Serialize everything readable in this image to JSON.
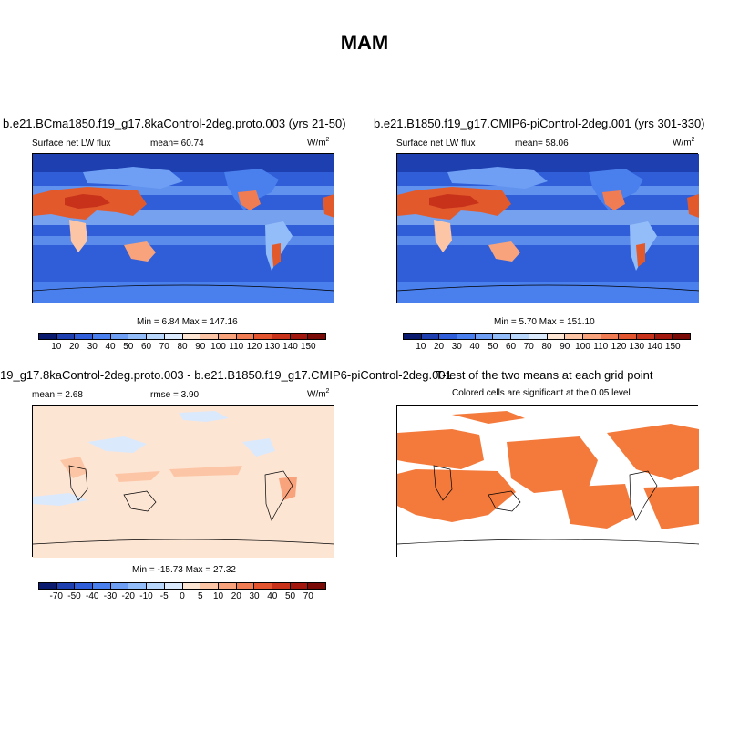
{
  "title": "MAM",
  "panels": [
    {
      "title": "b.e21.BCma1850.f19_g17.8kaControl-2deg.proto.003 (yrs 21-50)",
      "variable": "Surface net LW flux",
      "stat_label": "mean=",
      "stat_value": "60.74",
      "units": "W/m",
      "units_exp": "2",
      "min_label": "Min =",
      "min_value": "6.84",
      "max_label": "Max =",
      "max_value": "147.16"
    },
    {
      "title": "b.e21.B1850.f19_g17.CMIP6-piControl-2deg.001 (yrs 301-330)",
      "variable": "Surface net LW flux",
      "stat_label": "mean=",
      "stat_value": "58.06",
      "units": "W/m",
      "units_exp": "2",
      "min_label": "Min =",
      "min_value": "5.70",
      "max_label": "Max =",
      "max_value": "151.10"
    },
    {
      "title": "19_g17.8kaControl-2deg.proto.003 - b.e21.B1850.f19_g17.CMIP6-piControl-2deg.001",
      "mean_label": "mean =",
      "mean_value": "2.68",
      "rmse_label": "rmse =",
      "rmse_value": "3.90",
      "units": "W/m",
      "units_exp": "2",
      "min_label": "Min =",
      "min_value": "-15.73",
      "max_label": "Max =",
      "max_value": "27.32"
    },
    {
      "title": "T-test of the two means at each grid point",
      "subtitle": "Colored cells are significant at the 0.05 level"
    }
  ],
  "colorbar_abs": {
    "labels": [
      "10",
      "20",
      "30",
      "40",
      "50",
      "60",
      "70",
      "80",
      "90",
      "100",
      "110",
      "120",
      "130",
      "140",
      "150"
    ],
    "colors": [
      "#0a1a6e",
      "#1d3fb0",
      "#2f5ed8",
      "#4a7fee",
      "#6e9ff4",
      "#93bdf8",
      "#b9d6fb",
      "#dbe9fc",
      "#fde5d4",
      "#fcc6a6",
      "#f8a37c",
      "#f07c54",
      "#e2552e",
      "#c8321a",
      "#a2170e",
      "#7a0a05"
    ],
    "highlight_abs": "#e25a2c"
  },
  "colorbar_diff": {
    "labels": [
      "-70",
      "-50",
      "-40",
      "-30",
      "-20",
      "-10",
      "-5",
      "0",
      "5",
      "10",
      "20",
      "30",
      "40",
      "50",
      "70"
    ],
    "colors": [
      "#0a1a6e",
      "#1d3fb0",
      "#2f5ed8",
      "#4a7fee",
      "#6e9ff4",
      "#93bdf8",
      "#b9d6fb",
      "#dbe9fc",
      "#fde5d4",
      "#fcc6a6",
      "#f8a37c",
      "#f07c54",
      "#e2552e",
      "#c8321a",
      "#a2170e",
      "#7a0a05"
    ]
  },
  "ttest_color": "#f47a3c"
}
